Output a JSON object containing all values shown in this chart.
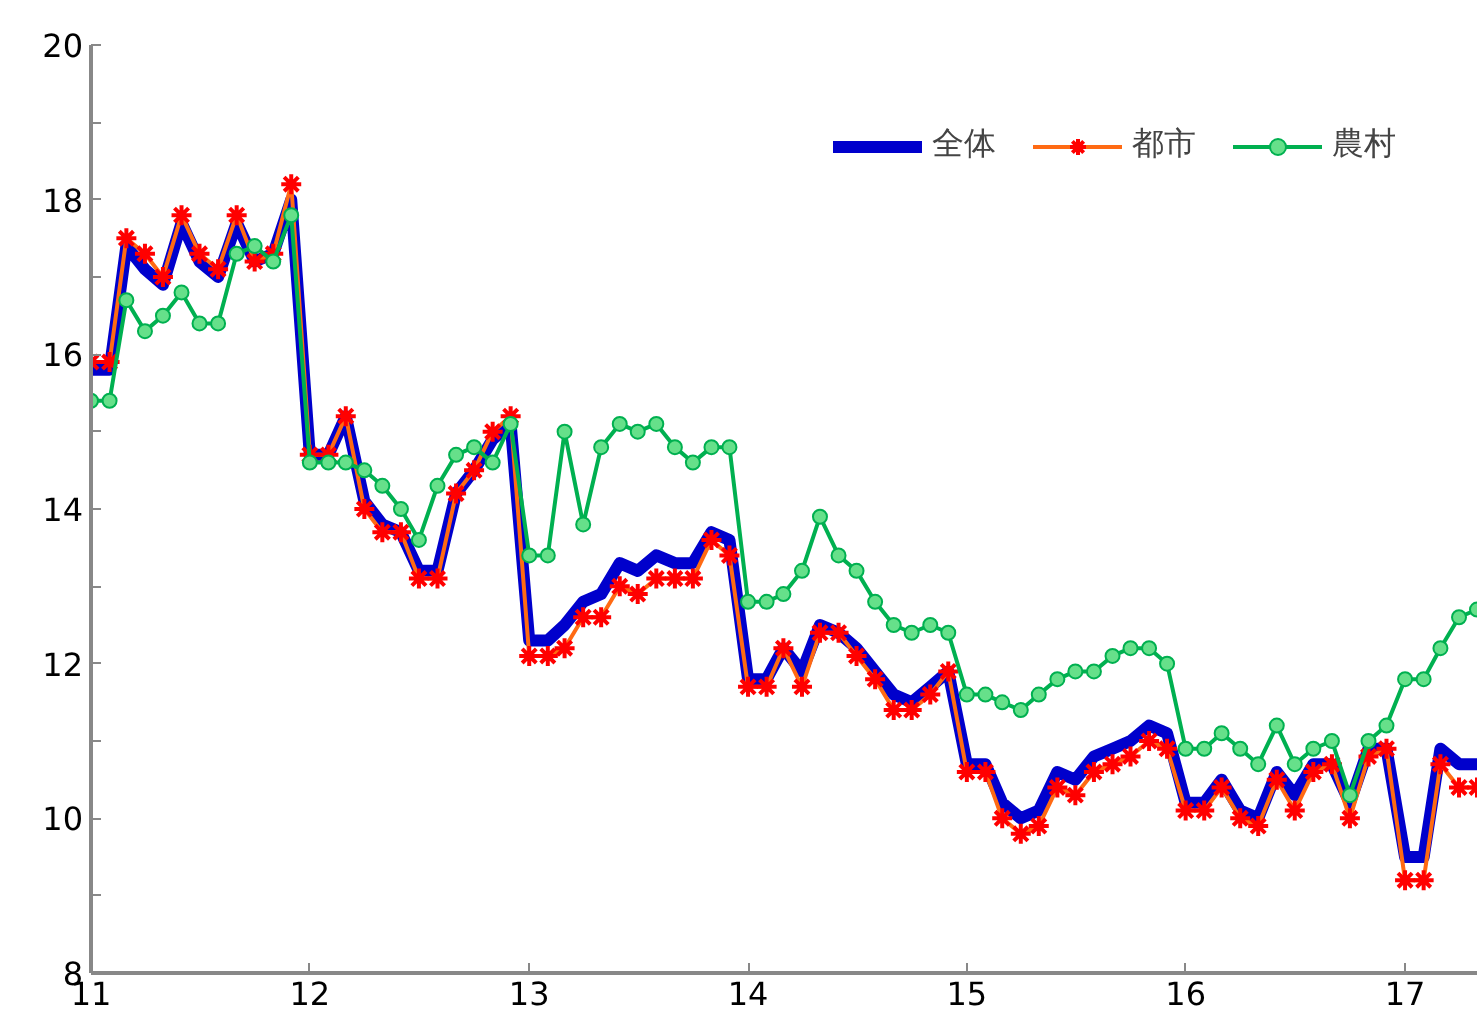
{
  "chart_data": {
    "type": "line",
    "x": [
      "2011-01",
      "2011-02",
      "2011-03",
      "2011-04",
      "2011-05",
      "2011-06",
      "2011-07",
      "2011-08",
      "2011-09",
      "2011-10",
      "2011-11",
      "2011-12",
      "2012-01",
      "2012-02",
      "2012-03",
      "2012-04",
      "2012-05",
      "2012-06",
      "2012-07",
      "2012-08",
      "2012-09",
      "2012-10",
      "2012-11",
      "2012-12",
      "2013-01",
      "2013-02",
      "2013-03",
      "2013-04",
      "2013-05",
      "2013-06",
      "2013-07",
      "2013-08",
      "2013-09",
      "2013-10",
      "2013-11",
      "2013-12",
      "2014-01",
      "2014-02",
      "2014-03",
      "2014-04",
      "2014-05",
      "2014-06",
      "2014-07",
      "2014-08",
      "2014-09",
      "2014-10",
      "2014-11",
      "2014-12",
      "2015-01",
      "2015-02",
      "2015-03",
      "2015-04",
      "2015-05",
      "2015-06",
      "2015-07",
      "2015-08",
      "2015-09",
      "2015-10",
      "2015-11",
      "2015-12",
      "2016-01",
      "2016-02",
      "2016-03",
      "2016-04",
      "2016-05",
      "2016-06",
      "2016-07",
      "2016-08",
      "2016-09",
      "2016-10",
      "2016-11",
      "2016-12",
      "2017-01",
      "2017-02",
      "2017-03",
      "2017-04",
      "2017-05"
    ],
    "series": [
      {
        "name": "全体",
        "color": "#0000cc",
        "marker": "none",
        "values": [
          15.8,
          15.8,
          17.4,
          17.1,
          16.9,
          17.7,
          17.2,
          17.0,
          17.7,
          17.2,
          17.3,
          18.0,
          14.7,
          14.7,
          15.2,
          14.1,
          13.8,
          13.7,
          13.2,
          13.2,
          14.2,
          14.5,
          14.9,
          15.1,
          12.3,
          12.3,
          12.5,
          12.8,
          12.9,
          13.3,
          13.2,
          13.4,
          13.3,
          13.3,
          13.7,
          13.6,
          11.8,
          11.8,
          12.2,
          11.9,
          12.5,
          12.4,
          12.2,
          11.9,
          11.6,
          11.5,
          11.7,
          11.9,
          10.7,
          10.7,
          10.2,
          10.0,
          10.1,
          10.6,
          10.5,
          10.8,
          10.9,
          11.0,
          11.2,
          11.1,
          10.2,
          10.2,
          10.5,
          10.1,
          10.0,
          10.6,
          10.3,
          10.7,
          10.7,
          10.2,
          10.9,
          10.9,
          9.5,
          9.5,
          10.9,
          10.7,
          10.7
        ]
      },
      {
        "name": "都市",
        "color": "#ff6a13",
        "marker": "cross",
        "values": [
          15.9,
          15.9,
          17.5,
          17.3,
          17.0,
          17.8,
          17.3,
          17.1,
          17.8,
          17.2,
          17.3,
          18.2,
          14.7,
          14.7,
          15.2,
          14.0,
          13.7,
          13.7,
          13.1,
          13.1,
          14.2,
          14.5,
          15.0,
          15.2,
          12.1,
          12.1,
          12.2,
          12.6,
          12.6,
          13.0,
          12.9,
          13.1,
          13.1,
          13.1,
          13.6,
          13.4,
          11.7,
          11.7,
          12.2,
          11.7,
          12.4,
          12.4,
          12.1,
          11.8,
          11.4,
          11.4,
          11.6,
          11.9,
          10.6,
          10.6,
          10.0,
          9.8,
          9.9,
          10.4,
          10.3,
          10.6,
          10.7,
          10.8,
          11.0,
          10.9,
          10.1,
          10.1,
          10.4,
          10.0,
          9.9,
          10.5,
          10.1,
          10.6,
          10.7,
          10.0,
          10.8,
          10.9,
          9.2,
          9.2,
          10.7,
          10.4,
          10.4
        ]
      },
      {
        "name": "農村",
        "color": "#00b050",
        "marker": "circle",
        "values": [
          15.4,
          15.4,
          16.7,
          16.3,
          16.5,
          16.8,
          16.4,
          16.4,
          17.3,
          17.4,
          17.2,
          17.8,
          14.6,
          14.6,
          14.6,
          14.5,
          14.3,
          14.0,
          13.6,
          14.3,
          14.7,
          14.8,
          14.6,
          15.1,
          13.4,
          13.4,
          15.0,
          13.8,
          14.8,
          15.1,
          15.0,
          15.1,
          14.8,
          14.6,
          14.8,
          14.8,
          12.8,
          12.8,
          12.9,
          13.2,
          13.9,
          13.4,
          13.2,
          12.8,
          12.5,
          12.4,
          12.5,
          12.4,
          11.6,
          11.6,
          11.5,
          11.4,
          11.6,
          11.8,
          11.9,
          11.9,
          12.1,
          12.2,
          12.2,
          12.0,
          10.9,
          10.9,
          11.1,
          10.9,
          10.7,
          11.2,
          10.7,
          10.9,
          11.0,
          10.3,
          11.0,
          11.2,
          11.8,
          11.8,
          12.2,
          12.6,
          12.7
        ]
      }
    ],
    "xlim": [
      "2011-01",
      "2017-05"
    ],
    "xticks": [
      {
        "value": "2011-01",
        "label": "11"
      },
      {
        "value": "2012-01",
        "label": "12"
      },
      {
        "value": "2013-01",
        "label": "13"
      },
      {
        "value": "2014-01",
        "label": "14"
      },
      {
        "value": "2015-01",
        "label": "15"
      },
      {
        "value": "2016-01",
        "label": "16"
      },
      {
        "value": "2017-01",
        "label": "17"
      }
    ],
    "ylim": [
      8,
      20
    ],
    "yticks": [
      8,
      {
        "value": 9,
        "label": null
      },
      10,
      {
        "value": 11,
        "label": null
      },
      12,
      {
        "value": 13,
        "label": null
      },
      14,
      {
        "value": 15,
        "label": null
      },
      16,
      {
        "value": 17,
        "label": null
      },
      18,
      {
        "value": 19,
        "label": null
      },
      20
    ],
    "grid": false,
    "legend": "top right"
  }
}
